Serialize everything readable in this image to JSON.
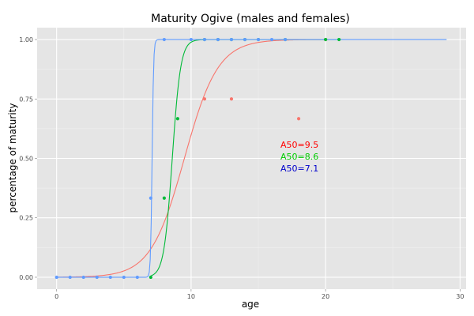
{
  "chart_data": {
    "type": "scatter",
    "title": "Maturity Ogive (males and females)",
    "xlabel": "age",
    "ylabel": "percentage of maturity",
    "xlim": [
      -1.45,
      30.45
    ],
    "ylim": [
      -0.05,
      1.05
    ],
    "x_ticks": [
      0,
      10,
      20,
      30
    ],
    "x_tick_labels": [
      "0",
      "10",
      "20",
      "30"
    ],
    "y_ticks": [
      0,
      0.25,
      0.5,
      0.75,
      1
    ],
    "y_tick_labels": [
      "0.00",
      "0.25",
      "0.50",
      "0.75",
      "1.00"
    ],
    "grid": true,
    "legend": "none",
    "series": [
      {
        "color": "#F8766D",
        "a50": 9.5,
        "curve_slope": 0.8,
        "curve_x_range": [
          0,
          20
        ],
        "points": [
          {
            "x": 11,
            "y": 0.75
          },
          {
            "x": 13,
            "y": 0.75
          },
          {
            "x": 18,
            "y": 0.667
          },
          {
            "x": 20,
            "y": 1.0
          }
        ]
      },
      {
        "color": "#00BA38",
        "a50": 8.6,
        "curve_slope": 3.2,
        "curve_x_range": [
          7,
          21
        ],
        "points": [
          {
            "x": 7,
            "y": 0.0
          },
          {
            "x": 8,
            "y": 0.333
          },
          {
            "x": 9,
            "y": 0.667
          },
          {
            "x": 11,
            "y": 1.0
          },
          {
            "x": 12,
            "y": 1.0
          },
          {
            "x": 13,
            "y": 1.0
          },
          {
            "x": 14,
            "y": 1.0
          },
          {
            "x": 15,
            "y": 1.0
          },
          {
            "x": 17,
            "y": 1.0
          },
          {
            "x": 20,
            "y": 1.0
          },
          {
            "x": 21,
            "y": 1.0
          }
        ]
      },
      {
        "color": "#619CFF",
        "a50": 7.1,
        "curve_slope": 18,
        "curve_x_range": [
          0,
          29
        ],
        "points": [
          {
            "x": 0,
            "y": 0.0
          },
          {
            "x": 1,
            "y": 0.0
          },
          {
            "x": 2,
            "y": 0.0
          },
          {
            "x": 3,
            "y": 0.0
          },
          {
            "x": 4,
            "y": 0.0
          },
          {
            "x": 5,
            "y": 0.0
          },
          {
            "x": 6,
            "y": 0.0
          },
          {
            "x": 7,
            "y": 0.333
          },
          {
            "x": 8,
            "y": 1.0
          },
          {
            "x": 10,
            "y": 1.0
          },
          {
            "x": 11,
            "y": 1.0
          },
          {
            "x": 12,
            "y": 1.0
          },
          {
            "x": 13,
            "y": 1.0
          },
          {
            "x": 14,
            "y": 1.0
          },
          {
            "x": 15,
            "y": 1.0
          },
          {
            "x": 16,
            "y": 1.0
          },
          {
            "x": 17,
            "y": 1.0
          }
        ]
      }
    ],
    "annotations": [
      {
        "text": "A50=9.5",
        "color": "#FF0000"
      },
      {
        "text": "A50=8.6",
        "color": "#00CC00"
      },
      {
        "text": "A50=7.1",
        "color": "#0000CC"
      }
    ]
  }
}
